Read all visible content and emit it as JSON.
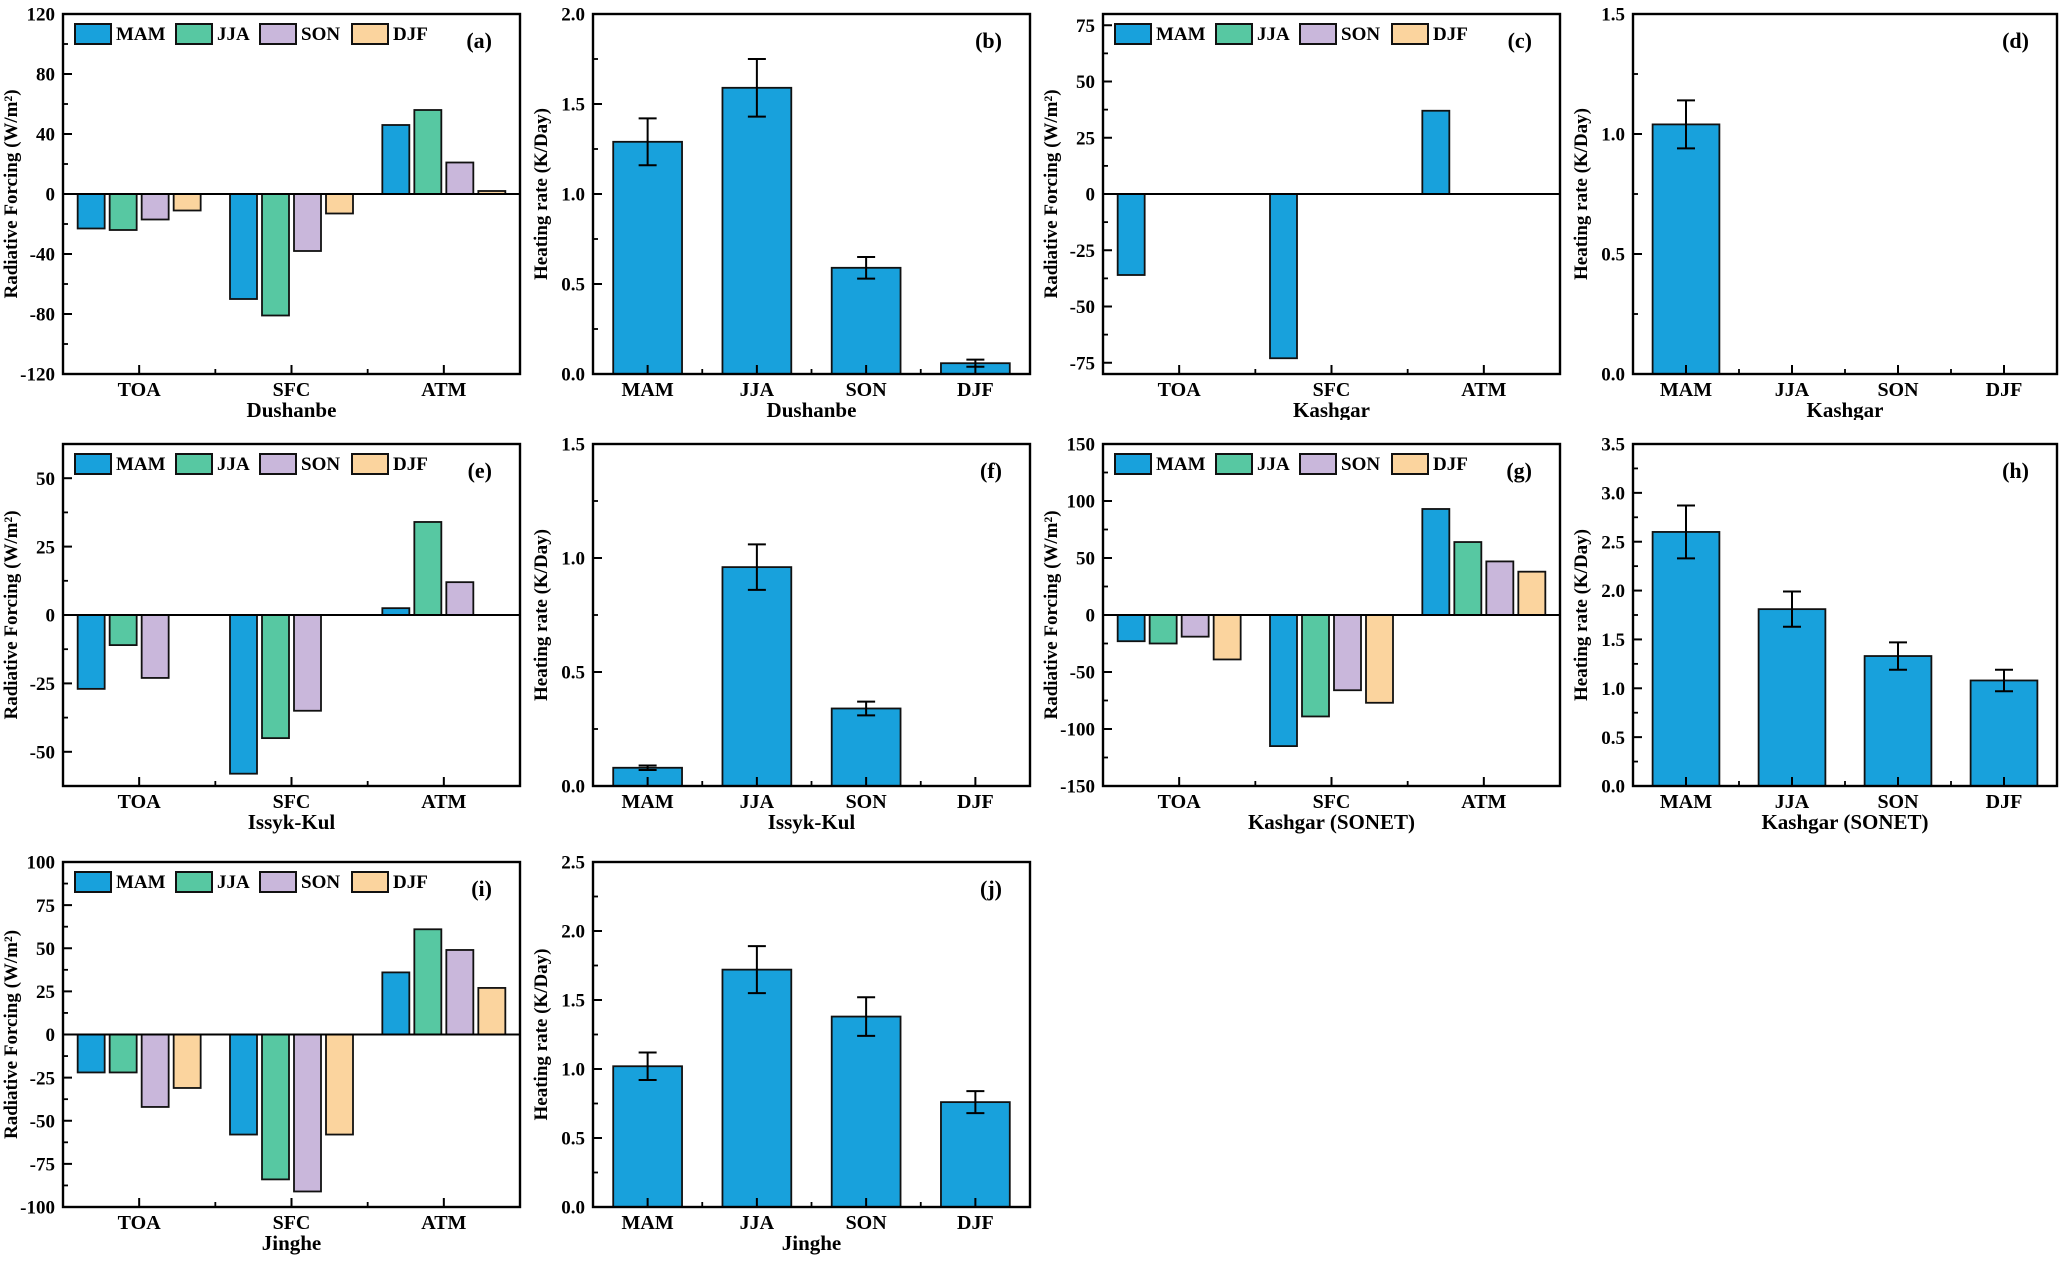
{
  "figure": {
    "background": "#ffffff",
    "description_labels": {
      "rf_ylabel": "Radiative Forcing (W/m²)",
      "hr_ylabel": "Heating rate (K/Day)"
    }
  },
  "legend": {
    "items": [
      {
        "label": "MAM",
        "color": "#18A1DC"
      },
      {
        "label": "JJA",
        "color": "#57C8A2"
      },
      {
        "label": "SON",
        "color": "#C9B7DB"
      },
      {
        "label": "DJF",
        "color": "#FBD49E"
      }
    ],
    "edge_color": "#111111"
  },
  "chart_data": [
    {
      "id": "a",
      "panel_label": "(a)",
      "type": "bar",
      "mode": "grouped",
      "title": "",
      "xlabel": "Dushanbe",
      "ylabel": "Radiative Forcing (W/m²)",
      "categories": [
        "TOA",
        "SFC",
        "ATM"
      ],
      "ylim": [
        -120,
        120
      ],
      "ytick_step": 40,
      "ytick_decimals": 0,
      "grid": false,
      "legend": true,
      "legend_position": "top-inside",
      "series": [
        {
          "name": "MAM",
          "values": [
            -23,
            -70,
            46
          ]
        },
        {
          "name": "JJA",
          "values": [
            -24,
            -81,
            56
          ]
        },
        {
          "name": "SON",
          "values": [
            -17,
            -38,
            21
          ]
        },
        {
          "name": "DJF",
          "values": [
            -11,
            -13,
            2
          ]
        }
      ]
    },
    {
      "id": "b",
      "panel_label": "(b)",
      "type": "bar",
      "mode": "single",
      "title": "",
      "xlabel": "Dushanbe",
      "ylabel": "Heating rate (K/Day)",
      "categories": [
        "MAM",
        "JJA",
        "SON",
        "DJF"
      ],
      "ylim": [
        0,
        2.0
      ],
      "ytick_step": 0.5,
      "ytick_decimals": 1,
      "grid": false,
      "legend": false,
      "values": [
        1.29,
        1.59,
        0.59,
        0.06
      ],
      "errors": [
        0.13,
        0.16,
        0.06,
        0.02
      ]
    },
    {
      "id": "c",
      "panel_label": "(c)",
      "type": "bar",
      "mode": "grouped",
      "title": "",
      "xlabel": "Kashgar",
      "ylabel": "Radiative Forcing (W/m²)",
      "categories": [
        "TOA",
        "SFC",
        "ATM"
      ],
      "ylim": [
        -80,
        80
      ],
      "ytick_step": 25,
      "ytick_decimals": 0,
      "grid": false,
      "legend": true,
      "legend_position": "top-inside",
      "series": [
        {
          "name": "MAM",
          "values": [
            -36,
            -73,
            37
          ]
        },
        {
          "name": "JJA",
          "values": [
            null,
            null,
            null
          ]
        },
        {
          "name": "SON",
          "values": [
            null,
            null,
            null
          ]
        },
        {
          "name": "DJF",
          "values": [
            null,
            null,
            null
          ]
        }
      ]
    },
    {
      "id": "d",
      "panel_label": "(d)",
      "type": "bar",
      "mode": "single",
      "title": "",
      "xlabel": "Kashgar",
      "ylabel": "Heating rate (K/Day)",
      "categories": [
        "MAM",
        "JJA",
        "SON",
        "DJF"
      ],
      "ylim": [
        0,
        1.5
      ],
      "ytick_step": 0.5,
      "ytick_decimals": 1,
      "grid": false,
      "legend": false,
      "values": [
        1.04,
        null,
        null,
        null
      ],
      "errors": [
        0.1,
        null,
        null,
        null
      ]
    },
    {
      "id": "e",
      "panel_label": "(e)",
      "type": "bar",
      "mode": "grouped",
      "title": "",
      "xlabel": "Issyk-Kul",
      "ylabel": "Radiative Forcing (W/m²)",
      "categories": [
        "TOA",
        "SFC",
        "ATM"
      ],
      "ylim": [
        -62.5,
        62.5
      ],
      "ytick_step": 25,
      "ytick_decimals": 0,
      "grid": false,
      "legend": true,
      "legend_position": "top-inside",
      "series": [
        {
          "name": "MAM",
          "values": [
            -27,
            -58,
            2.5
          ]
        },
        {
          "name": "JJA",
          "values": [
            -11,
            -45,
            34
          ]
        },
        {
          "name": "SON",
          "values": [
            -23,
            -35,
            12
          ]
        },
        {
          "name": "DJF",
          "values": [
            null,
            null,
            null
          ]
        }
      ]
    },
    {
      "id": "f",
      "panel_label": "(f)",
      "type": "bar",
      "mode": "single",
      "title": "",
      "xlabel": "Issyk-Kul",
      "ylabel": "Heating rate (K/Day)",
      "categories": [
        "MAM",
        "JJA",
        "SON",
        "DJF"
      ],
      "ylim": [
        0,
        1.5
      ],
      "ytick_step": 0.5,
      "ytick_decimals": 1,
      "grid": false,
      "legend": false,
      "values": [
        0.08,
        0.96,
        0.34,
        null
      ],
      "errors": [
        0.01,
        0.1,
        0.03,
        null
      ]
    },
    {
      "id": "g",
      "panel_label": "(g)",
      "type": "bar",
      "mode": "grouped",
      "title": "",
      "xlabel": "Kashgar (SONET)",
      "ylabel": "Radiative Forcing (W/m²)",
      "categories": [
        "TOA",
        "SFC",
        "ATM"
      ],
      "ylim": [
        -150,
        150
      ],
      "ytick_step": 50,
      "ytick_decimals": 0,
      "grid": false,
      "legend": true,
      "legend_position": "top-inside",
      "series": [
        {
          "name": "MAM",
          "values": [
            -23,
            -115,
            93
          ]
        },
        {
          "name": "JJA",
          "values": [
            -25,
            -89,
            64
          ]
        },
        {
          "name": "SON",
          "values": [
            -19,
            -66,
            47
          ]
        },
        {
          "name": "DJF",
          "values": [
            -39,
            -77,
            38
          ]
        }
      ]
    },
    {
      "id": "h",
      "panel_label": "(h)",
      "type": "bar",
      "mode": "single",
      "title": "",
      "xlabel": "Kashgar (SONET)",
      "ylabel": "Heating rate (K/Day)",
      "categories": [
        "MAM",
        "JJA",
        "SON",
        "DJF"
      ],
      "ylim": [
        0,
        3.5
      ],
      "ytick_step": 0.5,
      "ytick_decimals": 1,
      "grid": false,
      "legend": false,
      "values": [
        2.6,
        1.81,
        1.33,
        1.08
      ],
      "errors": [
        0.27,
        0.18,
        0.14,
        0.11
      ]
    },
    {
      "id": "i",
      "panel_label": "(i)",
      "type": "bar",
      "mode": "grouped",
      "title": "",
      "xlabel": "Jinghe",
      "ylabel": "Radiative Forcing (W/m²)",
      "categories": [
        "TOA",
        "SFC",
        "ATM"
      ],
      "ylim": [
        -100,
        100
      ],
      "ytick_step": 25,
      "ytick_decimals": 0,
      "grid": false,
      "legend": true,
      "legend_position": "top-inside",
      "series": [
        {
          "name": "MAM",
          "values": [
            -22,
            -58,
            36
          ]
        },
        {
          "name": "JJA",
          "values": [
            -22,
            -84,
            61
          ]
        },
        {
          "name": "SON",
          "values": [
            -42,
            -91,
            49
          ]
        },
        {
          "name": "DJF",
          "values": [
            -31,
            -58,
            27
          ]
        }
      ]
    },
    {
      "id": "j",
      "panel_label": "(j)",
      "type": "bar",
      "mode": "single",
      "title": "",
      "xlabel": "Jinghe",
      "ylabel": "Heating rate (K/Day)",
      "categories": [
        "MAM",
        "JJA",
        "SON",
        "DJF"
      ],
      "ylim": [
        0,
        2.5
      ],
      "ytick_step": 0.5,
      "ytick_decimals": 1,
      "grid": false,
      "legend": false,
      "values": [
        1.02,
        1.72,
        1.38,
        0.76
      ],
      "errors": [
        0.1,
        0.17,
        0.14,
        0.08
      ]
    }
  ]
}
